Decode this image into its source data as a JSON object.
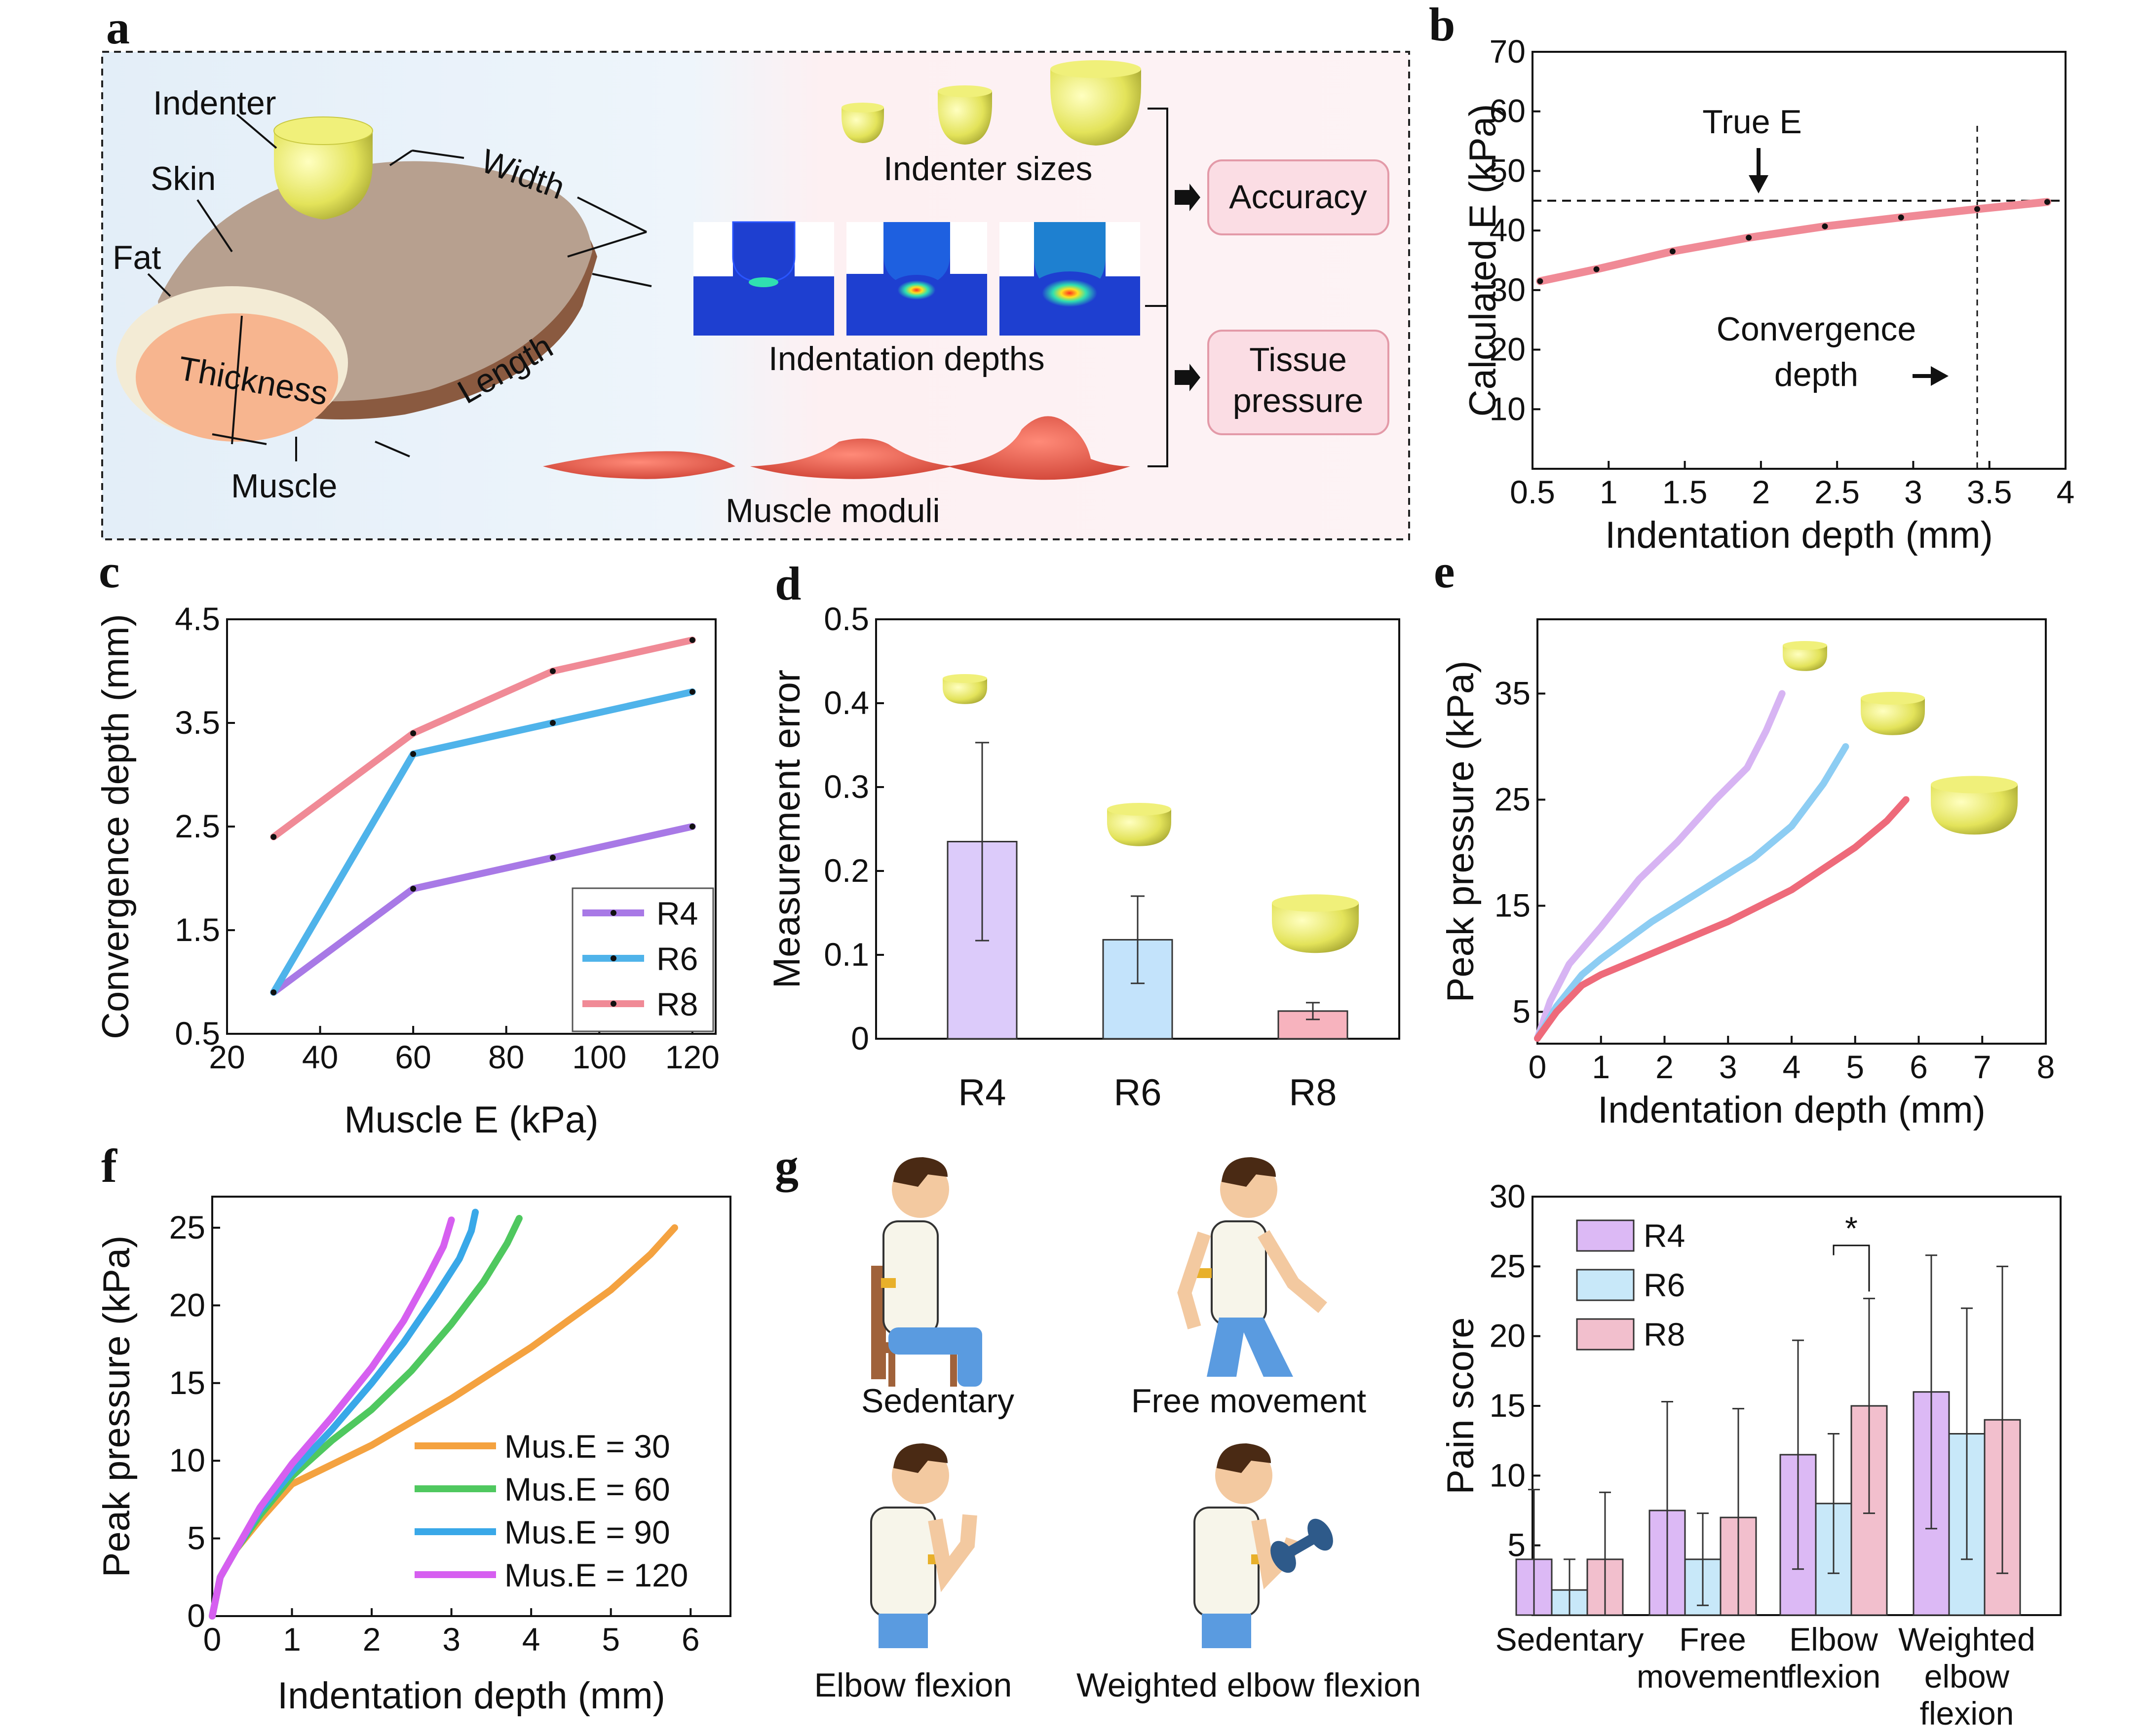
{
  "panel_labels": {
    "a": "a",
    "b": "b",
    "c": "c",
    "d": "d",
    "e": "e",
    "f": "f",
    "g": "g"
  },
  "panel_a": {
    "labels": {
      "indenter": "Indenter",
      "skin": "Skin",
      "fat": "Fat",
      "thickness": "Thickness",
      "muscle": "Muscle",
      "width": "Width",
      "length": "Length",
      "indenter_sizes": "Indenter sizes",
      "indentation_depths": "Indentation depths",
      "muscle_moduli": "Muscle moduli",
      "accuracy": "Accuracy",
      "tissue_pressure_1": "Tissue",
      "tissue_pressure_2": "pressure"
    },
    "colors": {
      "skin": "#b39e8e",
      "fat": "#f1ead5",
      "muscle": "#f7b58f",
      "indenter": "#e8e86a",
      "box_fill": "#fbdde4",
      "box_stroke": "#e39aa8",
      "fem_blue": "#1e3fd0",
      "muscle_red": "#e45f4f"
    }
  },
  "chart_data": [
    {
      "id": "b",
      "type": "line",
      "title": "",
      "xlabel": "Indentation depth (mm)",
      "ylabel": "Calculated E (kPa)",
      "xlim": [
        0.5,
        4
      ],
      "ylim": [
        0,
        70
      ],
      "xticks": [
        0.5,
        1,
        1.5,
        2,
        2.5,
        3,
        3.5,
        4
      ],
      "yticks": [
        10,
        20,
        30,
        40,
        50,
        60,
        70
      ],
      "series": [
        {
          "name": "Calculated E",
          "color": "#f08a96",
          "x": [
            0.55,
            0.92,
            1.42,
            1.92,
            2.42,
            2.92,
            3.42,
            3.88
          ],
          "y": [
            31.5,
            33.5,
            36.5,
            38.8,
            40.7,
            42.2,
            43.6,
            44.8
          ]
        }
      ],
      "reference": {
        "true_e": 45,
        "convergence_depth": 3.42
      },
      "annotations": {
        "true_e": "True E",
        "convergence_1": "Convergence",
        "convergence_2": "depth"
      }
    },
    {
      "id": "c",
      "type": "line",
      "xlabel": "Muscle E (kPa)",
      "ylabel": "Convergence depth (mm)",
      "xlim": [
        20,
        125
      ],
      "ylim": [
        0.5,
        4.5
      ],
      "xticks": [
        20,
        40,
        60,
        80,
        100,
        120
      ],
      "yticks": [
        0.5,
        1.5,
        2.5,
        3.5,
        4.5
      ],
      "x": [
        30,
        60,
        90,
        120
      ],
      "series": [
        {
          "name": "R4",
          "color": "#a879e6",
          "values": [
            0.9,
            1.9,
            2.2,
            2.5
          ]
        },
        {
          "name": "R6",
          "color": "#4fb3ea",
          "values": [
            0.9,
            3.2,
            3.5,
            3.8
          ]
        },
        {
          "name": "R8",
          "color": "#f08a96",
          "values": [
            2.4,
            3.4,
            4.0,
            4.3
          ]
        }
      ],
      "legend": "bottom-right"
    },
    {
      "id": "d",
      "type": "bar",
      "ylabel": "Measurement error",
      "categories": [
        "R4",
        "R6",
        "R8"
      ],
      "values": [
        0.235,
        0.118,
        0.033
      ],
      "errors": [
        0.118,
        0.052,
        0.01
      ],
      "colors": [
        "#dccbfa",
        "#c3e3fb",
        "#f7b3be"
      ],
      "ylim": [
        0,
        0.5
      ],
      "yticks": [
        0,
        0.1,
        0.2,
        0.3,
        0.4,
        0.5
      ]
    },
    {
      "id": "e",
      "type": "line",
      "xlabel": "Indentation depth (mm)",
      "ylabel": "Peak pressure (kPa)",
      "xlim": [
        0,
        8
      ],
      "ylim": [
        2,
        42
      ],
      "xticks": [
        0,
        1,
        2,
        3,
        4,
        5,
        6,
        7,
        8
      ],
      "yticks": [
        5,
        15,
        25,
        35
      ],
      "series": [
        {
          "name": "R4",
          "color": "#d7b4f3",
          "x": [
            0,
            0.2,
            0.5,
            1,
            1.6,
            2.2,
            2.8,
            3.3,
            3.6,
            3.85
          ],
          "y": [
            2.5,
            6,
            9.5,
            13,
            17.5,
            21,
            25,
            28,
            31.5,
            35
          ]
        },
        {
          "name": "R6",
          "color": "#8dcdf3",
          "x": [
            0,
            0.3,
            0.7,
            1,
            1.8,
            2.6,
            3.4,
            4,
            4.5,
            4.85
          ],
          "y": [
            2.5,
            5.5,
            8.5,
            10,
            13.5,
            16.5,
            19.5,
            22.5,
            26.5,
            30
          ]
        },
        {
          "name": "R8",
          "color": "#ee6a7a",
          "x": [
            0,
            0.3,
            0.7,
            1,
            2,
            3,
            4,
            5,
            5.5,
            5.8
          ],
          "y": [
            2.5,
            5,
            7.5,
            8.5,
            11,
            13.5,
            16.5,
            20.5,
            23,
            25
          ]
        }
      ]
    },
    {
      "id": "f",
      "type": "line",
      "xlabel": "Indentation depth (mm)",
      "ylabel": "Peak pressure (kPa)",
      "xlim": [
        0,
        6.5
      ],
      "ylim": [
        0,
        27
      ],
      "xticks": [
        0,
        1,
        2,
        3,
        4,
        5,
        6
      ],
      "yticks": [
        0,
        5,
        10,
        15,
        20,
        25
      ],
      "series": [
        {
          "name": "Mus.E = 30",
          "color": "#f4a240",
          "x": [
            0,
            0.1,
            0.3,
            0.6,
            1,
            2,
            3,
            4,
            5,
            5.5,
            5.8
          ],
          "y": [
            0,
            2.5,
            4.3,
            6.2,
            8.5,
            11,
            14,
            17.3,
            21,
            23.3,
            25
          ]
        },
        {
          "name": "Mus.E = 60",
          "color": "#4fc85f",
          "x": [
            0,
            0.1,
            0.3,
            0.6,
            1,
            1.5,
            2,
            2.5,
            3,
            3.4,
            3.7,
            3.85
          ],
          "y": [
            0,
            2.5,
            4.3,
            6.5,
            9,
            11.3,
            13.3,
            15.8,
            18.8,
            21.5,
            24,
            25.6
          ]
        },
        {
          "name": "Mus.E = 90",
          "color": "#39a8e8",
          "x": [
            0,
            0.1,
            0.3,
            0.6,
            1,
            1.5,
            2,
            2.4,
            2.8,
            3.1,
            3.25,
            3.3
          ],
          "y": [
            0,
            2.5,
            4.3,
            6.8,
            9.3,
            12,
            15,
            17.6,
            20.6,
            23,
            24.8,
            26
          ]
        },
        {
          "name": "Mus.E = 120",
          "color": "#d65ff0",
          "x": [
            0,
            0.1,
            0.3,
            0.6,
            1,
            1.5,
            2,
            2.4,
            2.7,
            2.9,
            3
          ],
          "y": [
            0,
            2.5,
            4.3,
            7,
            9.8,
            12.8,
            16,
            19,
            21.8,
            23.8,
            25.5
          ]
        }
      ],
      "legend": "bottom-right"
    },
    {
      "id": "g",
      "type": "bar",
      "ylabel": "Pain score",
      "categories": [
        "Sedentary",
        "Free movement",
        "Elbow flexion",
        "Weighted elbow flexion"
      ],
      "category_lines": [
        [
          "Sedentary"
        ],
        [
          "Free",
          "movement"
        ],
        [
          "Elbow",
          "flexion"
        ],
        [
          "Weighted",
          "elbow",
          "flexion"
        ]
      ],
      "series": [
        {
          "name": "R4",
          "color": "#dcb9f5",
          "values": [
            4,
            7.5,
            11.5,
            16
          ],
          "errors": [
            5,
            7.8,
            8.2,
            9.8
          ]
        },
        {
          "name": "R6",
          "color": "#c8e8f9",
          "values": [
            1.8,
            4,
            8,
            13
          ],
          "errors": [
            2.2,
            3.3,
            5,
            9
          ]
        },
        {
          "name": "R8",
          "color": "#f2bfcd",
          "values": [
            4,
            7,
            15,
            14
          ],
          "errors": [
            4.8,
            7.8,
            7.7,
            11
          ]
        }
      ],
      "ylim": [
        0,
        30
      ],
      "yticks": [
        5,
        10,
        15,
        20,
        25,
        30
      ],
      "significance": "*"
    }
  ],
  "panel_g_scenes": [
    "Sedentary",
    "Free movement",
    "Elbow flexion",
    "Weighted elbow flexion"
  ]
}
